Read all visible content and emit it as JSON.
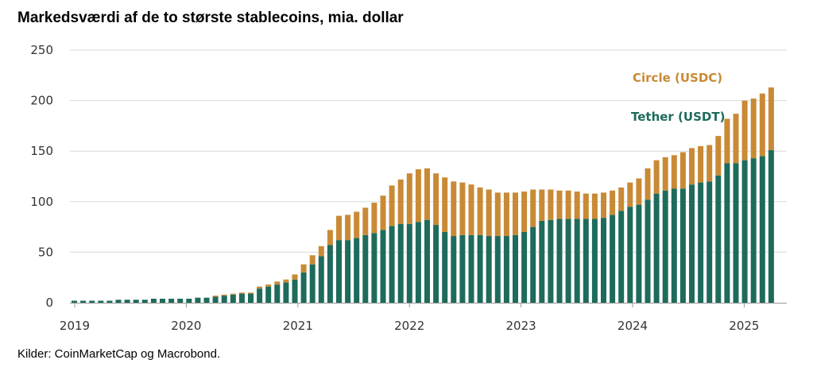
{
  "chart_data": {
    "type": "bar",
    "stacked": true,
    "title": "Markedsværdi af de to største stablecoins, mia. dollar",
    "source": "Kilder: CoinMarketCap og Macrobond.",
    "ylim": [
      0,
      250
    ],
    "yticks": [
      0,
      50,
      100,
      150,
      200,
      250
    ],
    "xticks": [
      "2019",
      "2020",
      "2021",
      "2022",
      "2023",
      "2024",
      "2025"
    ],
    "grid": true,
    "legend_placement": "inline-top-right",
    "colors": {
      "tether": "#1e6b5c",
      "circle": "#c98a35",
      "grid": "#d9d9d9",
      "axis": "#999999"
    },
    "series": [
      {
        "name": "Tether (USDT)",
        "key": "tether",
        "values": [
          2,
          2,
          2,
          2,
          2,
          3,
          3,
          3,
          3,
          4,
          4,
          4,
          4,
          4,
          5,
          5,
          6,
          7,
          8,
          9,
          9,
          14,
          16,
          18,
          20,
          23,
          30,
          38,
          46,
          57,
          62,
          62,
          64,
          67,
          69,
          72,
          76,
          78,
          78,
          80,
          82,
          77,
          70,
          66,
          67,
          67,
          67,
          66,
          66,
          66,
          67,
          70,
          75,
          81,
          82,
          83,
          83,
          83,
          83,
          83,
          84,
          87,
          91,
          95,
          97,
          102,
          108,
          111,
          113,
          113,
          117,
          119,
          120,
          126,
          138,
          138,
          141,
          143,
          145,
          151
        ]
      },
      {
        "name": "Circle (USDC)",
        "key": "circle",
        "values": [
          0,
          0,
          0,
          0,
          0,
          0,
          0,
          0,
          0,
          0,
          0,
          0,
          0,
          0,
          0,
          0,
          1,
          1,
          1,
          1,
          1,
          2,
          2,
          3,
          3,
          5,
          8,
          9,
          10,
          15,
          24,
          25,
          26,
          27,
          30,
          34,
          40,
          44,
          50,
          52,
          51,
          51,
          54,
          54,
          52,
          50,
          47,
          46,
          43,
          43,
          42,
          40,
          37,
          31,
          30,
          28,
          28,
          27,
          25,
          25,
          25,
          24,
          23,
          24,
          26,
          31,
          33,
          33,
          33,
          36,
          36,
          36,
          36,
          39,
          44,
          49,
          59,
          59,
          62,
          62
        ]
      }
    ]
  }
}
